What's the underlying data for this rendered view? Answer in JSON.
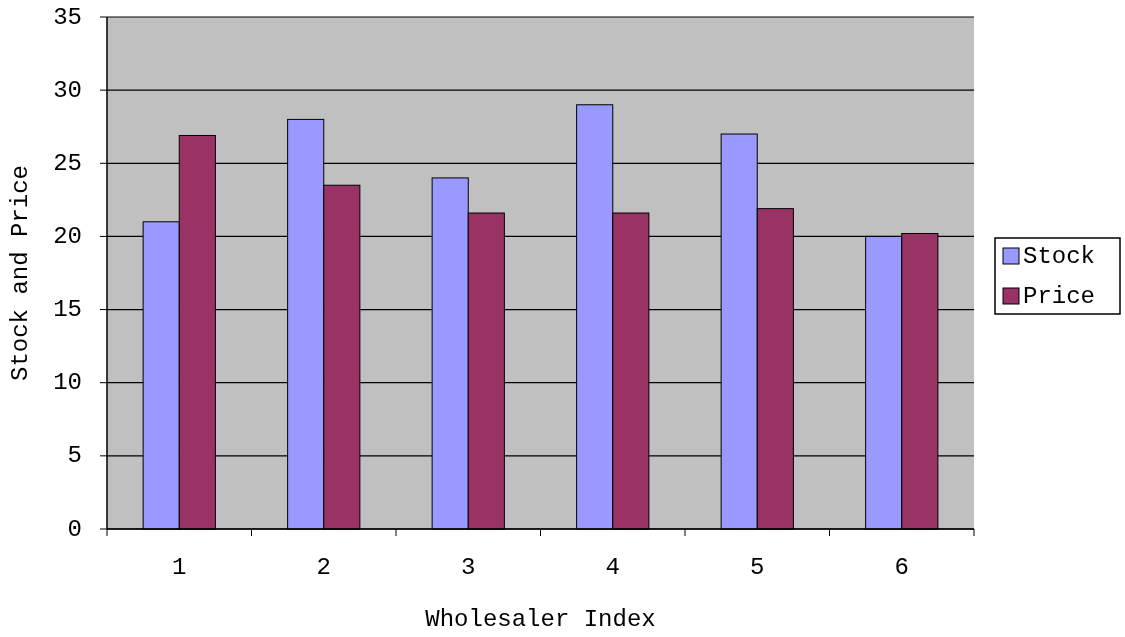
{
  "chart_data": {
    "type": "bar",
    "xlabel": "Wholesaler Index",
    "ylabel": "Stock and Price",
    "categories": [
      "1",
      "2",
      "3",
      "4",
      "5",
      "6"
    ],
    "series": [
      {
        "name": "Stock",
        "color": "#9999ff",
        "values": [
          21,
          28,
          24,
          29,
          27,
          20
        ]
      },
      {
        "name": "Price",
        "color": "#993366",
        "values": [
          26.9,
          23.5,
          21.6,
          21.6,
          21.9,
          20.2
        ]
      }
    ],
    "ylim": [
      0,
      35
    ],
    "yticks": [
      0,
      5,
      10,
      15,
      20,
      25,
      30,
      35
    ],
    "grid": "y",
    "legend": "right"
  }
}
